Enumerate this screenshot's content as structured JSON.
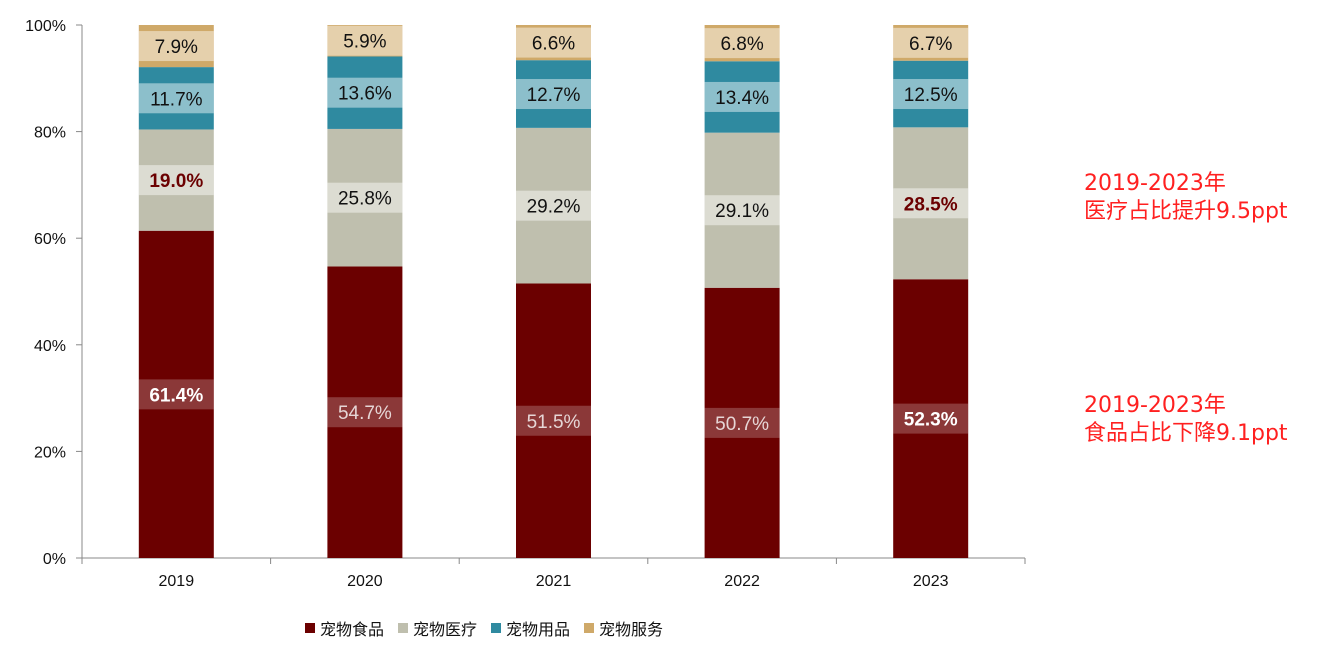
{
  "chart_data": {
    "type": "bar",
    "stacked": true,
    "categories": [
      "2019",
      "2020",
      "2021",
      "2022",
      "2023"
    ],
    "ylim": [
      0,
      100
    ],
    "yticks": [
      "0%",
      "20%",
      "40%",
      "60%",
      "80%",
      "100%"
    ],
    "legend_position": "bottom",
    "grid": false,
    "series": [
      {
        "name": "宠物食品",
        "color": "#6b0000",
        "values": [
          61.4,
          54.7,
          51.5,
          50.7,
          52.3
        ],
        "labels": [
          "61.4%",
          "54.7%",
          "51.5%",
          "50.7%",
          "52.3%"
        ],
        "bold": [
          true,
          false,
          false,
          false,
          true
        ]
      },
      {
        "name": "宠物医疗",
        "color": "#bfbfae",
        "values": [
          19.0,
          25.8,
          29.2,
          29.1,
          28.5
        ],
        "labels": [
          "19.0%",
          "25.8%",
          "29.2%",
          "29.1%",
          "28.5%"
        ],
        "bold": [
          true,
          false,
          false,
          false,
          true
        ]
      },
      {
        "name": "宠物用品",
        "color": "#2f8aa0",
        "values": [
          11.7,
          13.6,
          12.7,
          13.4,
          12.5
        ],
        "labels": [
          "11.7%",
          "13.6%",
          "12.7%",
          "13.4%",
          "12.5%"
        ],
        "bold": [
          false,
          false,
          false,
          false,
          false
        ]
      },
      {
        "name": "宠物服务",
        "color": "#cfa969",
        "values": [
          7.9,
          5.9,
          6.6,
          6.8,
          6.7
        ],
        "labels": [
          "7.9%",
          "5.9%",
          "6.6%",
          "6.8%",
          "6.7%"
        ],
        "bold": [
          false,
          false,
          false,
          false,
          false
        ]
      }
    ],
    "annotations": [
      {
        "line1": "2019-2023年",
        "line2": "医疗占比提升9.5ppt"
      },
      {
        "line1": "2019-2023年",
        "line2": "食品占比下降9.1ppt"
      }
    ]
  }
}
